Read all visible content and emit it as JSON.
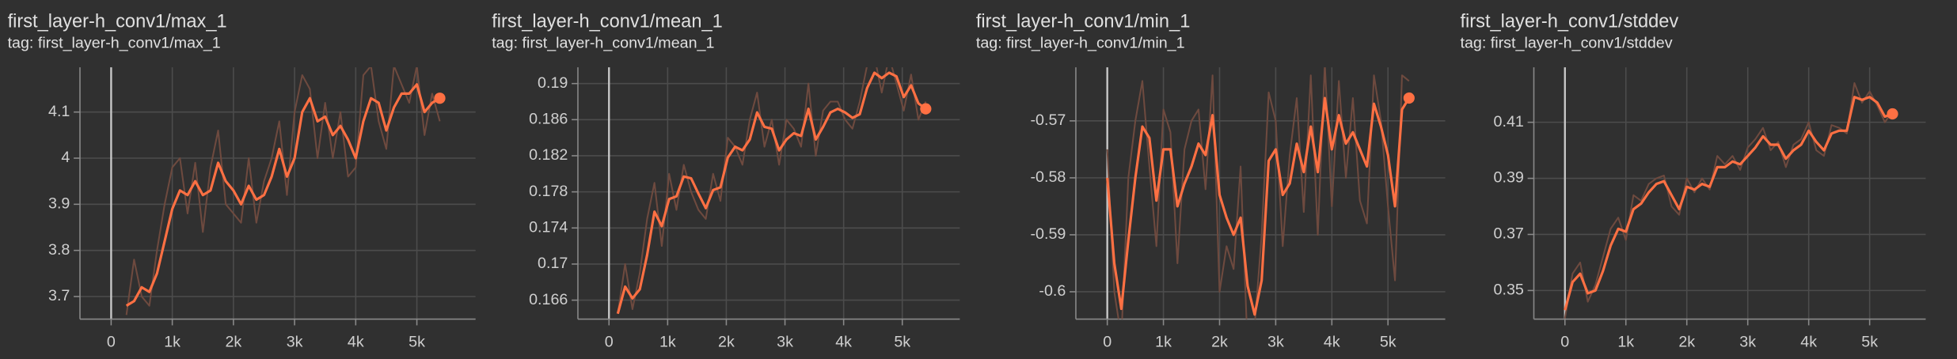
{
  "chart_data": [
    {
      "type": "line",
      "title": "first_layer-h_conv1/max_1",
      "subtitle": "tag: first_layer-h_conv1/max_1",
      "x": [
        250,
        375,
        500,
        625,
        750,
        875,
        1000,
        1125,
        1250,
        1375,
        1500,
        1625,
        1750,
        1875,
        2000,
        2125,
        2250,
        2375,
        2500,
        2625,
        2750,
        2875,
        3000,
        3125,
        3250,
        3375,
        3500,
        3625,
        3750,
        3875,
        4000,
        4125,
        4250,
        4375,
        4500,
        4625,
        4750,
        4875,
        5000,
        5125,
        5250,
        5375
      ],
      "series": [
        {
          "color": "#6e4a3f",
          "values": [
            3.66,
            3.78,
            3.7,
            3.68,
            3.8,
            3.9,
            3.98,
            4.0,
            3.88,
            3.99,
            3.84,
            3.98,
            4.06,
            3.9,
            3.88,
            3.86,
            4.0,
            3.86,
            3.95,
            4.0,
            4.08,
            3.92,
            4.1,
            4.18,
            4.15,
            4.0,
            4.12,
            4.0,
            4.1,
            3.96,
            3.98,
            4.18,
            4.2,
            4.08,
            4.02,
            4.2,
            4.16,
            4.12,
            4.2,
            4.05,
            4.14,
            4.08
          ]
        },
        {
          "color": "#ff7043",
          "values": [
            3.68,
            3.69,
            3.72,
            3.71,
            3.75,
            3.82,
            3.89,
            3.93,
            3.92,
            3.95,
            3.92,
            3.93,
            3.99,
            3.95,
            3.93,
            3.9,
            3.94,
            3.91,
            3.92,
            3.96,
            4.02,
            3.96,
            4.0,
            4.1,
            4.13,
            4.08,
            4.09,
            4.05,
            4.07,
            4.04,
            4.0,
            4.08,
            4.13,
            4.12,
            4.06,
            4.11,
            4.14,
            4.14,
            4.16,
            4.1,
            4.12,
            4.13
          ]
        }
      ],
      "xlim": [
        -510,
        5960
      ],
      "xticks": [
        0,
        {
          "value": 1000,
          "label": "1k"
        },
        {
          "value": 2000,
          "label": "2k"
        },
        {
          "value": 3000,
          "label": "3k"
        },
        {
          "value": 4000,
          "label": "4k"
        },
        {
          "value": 5000,
          "label": "5k"
        }
      ],
      "ylim": [
        3.651,
        4.197
      ],
      "yticks": [
        3.7,
        3.8,
        3.9,
        4,
        4.1
      ],
      "grid": true
    },
    {
      "type": "line",
      "title": "first_layer-h_conv1/mean_1",
      "subtitle": "tag: first_layer-h_conv1/mean_1",
      "x": [
        150,
        275,
        400,
        525,
        650,
        775,
        900,
        1025,
        1150,
        1275,
        1400,
        1525,
        1650,
        1775,
        1900,
        2025,
        2150,
        2275,
        2400,
        2525,
        2650,
        2775,
        2900,
        3025,
        3150,
        3275,
        3400,
        3525,
        3650,
        3775,
        3900,
        4025,
        4150,
        4275,
        4400,
        4525,
        4650,
        4775,
        4900,
        5025,
        5150,
        5275,
        5400
      ],
      "series": [
        {
          "color": "#6e4a3f",
          "values": [
            0.1645,
            0.17,
            0.165,
            0.169,
            0.175,
            0.179,
            0.172,
            0.18,
            0.176,
            0.181,
            0.178,
            0.176,
            0.175,
            0.18,
            0.177,
            0.184,
            0.183,
            0.181,
            0.186,
            0.189,
            0.183,
            0.186,
            0.181,
            0.186,
            0.185,
            0.183,
            0.19,
            0.182,
            0.187,
            0.188,
            0.188,
            0.186,
            0.185,
            0.188,
            0.192,
            0.193,
            0.189,
            0.193,
            0.19,
            0.187,
            0.191,
            0.186,
            0.188
          ]
        },
        {
          "color": "#ff7043",
          "values": [
            0.1645,
            0.1675,
            0.1662,
            0.1672,
            0.171,
            0.1758,
            0.1742,
            0.1772,
            0.1775,
            0.1797,
            0.1795,
            0.1778,
            0.1762,
            0.1782,
            0.1785,
            0.1818,
            0.183,
            0.1826,
            0.1838,
            0.1868,
            0.1852,
            0.185,
            0.1826,
            0.1838,
            0.1845,
            0.1842,
            0.1872,
            0.1838,
            0.1852,
            0.1868,
            0.1872,
            0.1868,
            0.1862,
            0.1866,
            0.1895,
            0.1912,
            0.1906,
            0.1912,
            0.1908,
            0.1885,
            0.1898,
            0.1878,
            0.1872
          ]
        }
      ],
      "xlim": [
        -530,
        5980
      ],
      "xticks": [
        0,
        {
          "value": 1000,
          "label": "1k"
        },
        {
          "value": 2000,
          "label": "2k"
        },
        {
          "value": 3000,
          "label": "3k"
        },
        {
          "value": 4000,
          "label": "4k"
        },
        {
          "value": 5000,
          "label": "5k"
        }
      ],
      "ylim": [
        0.1639,
        0.1918
      ],
      "yticks": [
        0.166,
        0.17,
        0.174,
        0.178,
        0.182,
        0.186,
        0.19
      ],
      "grid": true
    },
    {
      "type": "line",
      "title": "first_layer-h_conv1/min_1",
      "subtitle": "tag: first_layer-h_conv1/min_1",
      "x": [
        0,
        125,
        250,
        375,
        500,
        625,
        750,
        875,
        1000,
        1125,
        1250,
        1375,
        1500,
        1625,
        1750,
        1875,
        2000,
        2125,
        2250,
        2375,
        2500,
        2625,
        2750,
        2875,
        3000,
        3125,
        3250,
        3375,
        3500,
        3625,
        3750,
        3875,
        4000,
        4125,
        4250,
        4375,
        4500,
        4625,
        4750,
        4875,
        5000,
        5125,
        5250,
        5375
      ],
      "series": [
        {
          "color": "#6e4a3f",
          "values": [
            -0.575,
            -0.6,
            -0.608,
            -0.58,
            -0.57,
            -0.563,
            -0.578,
            -0.592,
            -0.568,
            -0.572,
            -0.595,
            -0.575,
            -0.57,
            -0.568,
            -0.582,
            -0.562,
            -0.6,
            -0.592,
            -0.596,
            -0.578,
            -0.61,
            -0.606,
            -0.59,
            -0.565,
            -0.57,
            -0.592,
            -0.576,
            -0.566,
            -0.586,
            -0.562,
            -0.59,
            -0.56,
            -0.585,
            -0.563,
            -0.58,
            -0.566,
            -0.584,
            -0.588,
            -0.562,
            -0.57,
            -0.585,
            -0.598,
            -0.562,
            -0.563
          ]
        },
        {
          "color": "#ff7043",
          "values": [
            -0.58,
            -0.595,
            -0.603,
            -0.591,
            -0.58,
            -0.571,
            -0.573,
            -0.584,
            -0.575,
            -0.575,
            -0.585,
            -0.581,
            -0.578,
            -0.574,
            -0.576,
            -0.569,
            -0.583,
            -0.587,
            -0.59,
            -0.587,
            -0.599,
            -0.604,
            -0.598,
            -0.577,
            -0.575,
            -0.583,
            -0.581,
            -0.574,
            -0.579,
            -0.571,
            -0.579,
            -0.566,
            -0.575,
            -0.569,
            -0.574,
            -0.572,
            -0.575,
            -0.578,
            -0.567,
            -0.571,
            -0.576,
            -0.585,
            -0.568,
            -0.566
          ]
        }
      ],
      "xlim": [
        -560,
        6020
      ],
      "xticks": [
        0,
        {
          "value": 1000,
          "label": "1k"
        },
        {
          "value": 2000,
          "label": "2k"
        },
        {
          "value": 3000,
          "label": "3k"
        },
        {
          "value": 4000,
          "label": "4k"
        },
        {
          "value": 5000,
          "label": "5k"
        }
      ],
      "ylim": [
        -0.6048,
        -0.5606
      ],
      "yticks": [
        -0.6,
        -0.59,
        -0.58,
        -0.57
      ],
      "grid": true
    },
    {
      "type": "line",
      "title": "first_layer-h_conv1/stddev",
      "subtitle": "tag: first_layer-h_conv1/stddev",
      "x": [
        0,
        125,
        250,
        375,
        500,
        625,
        750,
        875,
        1000,
        1125,
        1250,
        1375,
        1500,
        1625,
        1750,
        1875,
        2000,
        2125,
        2250,
        2375,
        2500,
        2625,
        2750,
        2875,
        3000,
        3125,
        3250,
        3375,
        3500,
        3625,
        3750,
        3875,
        4000,
        4125,
        4250,
        4375,
        4500,
        4625,
        4750,
        4875,
        5000,
        5125,
        5250,
        5375
      ],
      "series": [
        {
          "color": "#6e4a3f",
          "values": [
            0.34,
            0.356,
            0.36,
            0.346,
            0.352,
            0.362,
            0.372,
            0.376,
            0.368,
            0.384,
            0.382,
            0.388,
            0.39,
            0.391,
            0.38,
            0.377,
            0.39,
            0.385,
            0.39,
            0.386,
            0.398,
            0.395,
            0.398,
            0.393,
            0.401,
            0.404,
            0.408,
            0.4,
            0.403,
            0.394,
            0.402,
            0.404,
            0.41,
            0.4,
            0.398,
            0.409,
            0.408,
            0.406,
            0.424,
            0.417,
            0.421,
            0.416,
            0.41,
            0.414
          ]
        },
        {
          "color": "#ff7043",
          "values": [
            0.343,
            0.353,
            0.356,
            0.349,
            0.35,
            0.357,
            0.366,
            0.372,
            0.371,
            0.379,
            0.381,
            0.385,
            0.388,
            0.389,
            0.384,
            0.379,
            0.387,
            0.386,
            0.388,
            0.387,
            0.394,
            0.394,
            0.396,
            0.395,
            0.398,
            0.401,
            0.405,
            0.402,
            0.402,
            0.397,
            0.4,
            0.402,
            0.407,
            0.403,
            0.4,
            0.406,
            0.407,
            0.407,
            0.419,
            0.418,
            0.419,
            0.417,
            0.412,
            0.413
          ]
        }
      ],
      "xlim": [
        -510,
        5920
      ],
      "xticks": [
        0,
        {
          "value": 1000,
          "label": "1k"
        },
        {
          "value": 2000,
          "label": "2k"
        },
        {
          "value": 3000,
          "label": "3k"
        },
        {
          "value": 4000,
          "label": "4k"
        },
        {
          "value": 5000,
          "label": "5k"
        }
      ],
      "ylim": [
        0.3398,
        0.4296
      ],
      "yticks": [
        0.35,
        0.37,
        0.39,
        0.41
      ],
      "grid": true
    }
  ]
}
